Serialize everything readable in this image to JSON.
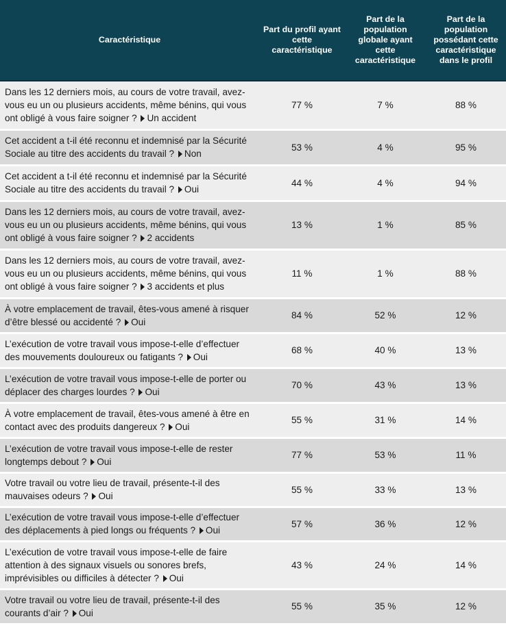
{
  "headers": [
    "Caractéristique",
    "Part du profil ayant cette caractéristique",
    "Part de la population globale ayant cette caractéristique",
    "Part de la population possédant cette caractéristique dans le profil"
  ],
  "rows": [
    {
      "question": "Dans les 12 derniers mois, au cours de votre travail, avez-vous eu un ou plusieurs accidents, même bénins, qui vous ont obligé à vous faire soigner ?",
      "answer": "Un accident",
      "profil": "77 %",
      "globale": "7 %",
      "dans_profil": "88 %",
      "h": 71
    },
    {
      "question": "Cet accident a t-il été reconnu et indemnisé par la Sécurité Sociale au titre des accidents du travail ?",
      "answer": "Non",
      "profil": "53 %",
      "globale": "4 %",
      "dans_profil": "95 %",
      "h": 52
    },
    {
      "question": "Cet accident a t-il été reconnu et indemnisé par la Sécurité Sociale au titre des accidents du travail ?",
      "answer": "Oui",
      "profil": "44 %",
      "globale": "4 %",
      "dans_profil": "94 %",
      "h": 52
    },
    {
      "question": "Dans les 12 derniers mois, au cours de votre travail, avez-vous eu un ou plusieurs accidents, même bénins, qui vous ont obligé à vous faire soigner ?",
      "answer": "2 accidents",
      "profil": "13 %",
      "globale": "1 %",
      "dans_profil": "85 %",
      "h": 71
    },
    {
      "question": "Dans les 12 derniers mois, au cours de votre travail, avez-vous eu un ou plusieurs accidents, même bénins, qui vous ont obligé à vous faire soigner ?",
      "answer": "3 accidents et plus",
      "profil": "11 %",
      "globale": "1 %",
      "dans_profil": "88 %",
      "h": 71
    },
    {
      "question": "À votre emplacement de travail, êtes-vous amené à risquer d’être blessé ou accidenté ?",
      "answer": "Oui",
      "profil": "84 %",
      "globale": "52 %",
      "dans_profil": "12 %",
      "h": 51
    },
    {
      "question": "L’exécution de votre travail vous impose-t-elle d’effectuer des mouvements douloureux ou fatigants ?",
      "answer": "Oui",
      "profil": "68 %",
      "globale": "40 %",
      "dans_profil": "13 %",
      "h": 51
    },
    {
      "question": "L’exécution de votre travail vous impose-t-elle de porter ou déplacer des charges lourdes ?",
      "answer": "Oui",
      "profil": "70 %",
      "globale": "43 %",
      "dans_profil": "13 %",
      "h": 51
    },
    {
      "question": "À votre emplacement de travail, êtes-vous amené à être en contact avec des produits dangereux ?",
      "answer": "Oui",
      "profil": "55 %",
      "globale": "31 %",
      "dans_profil": "14 %",
      "h": 51
    },
    {
      "question": "L’exécution de votre travail vous impose-t-elle de rester longtemps debout ?",
      "answer": "Oui",
      "profil": "77 %",
      "globale": "53 %",
      "dans_profil": "11 %",
      "h": 51
    },
    {
      "question": "Votre travail ou votre lieu de travail, présente-t-il des mauvaises odeurs ?",
      "answer": "Oui",
      "profil": "55 %",
      "globale": "33 %",
      "dans_profil": "13 %",
      "h": 50
    },
    {
      "question": "L’exécution de votre travail vous impose-t-elle d’effectuer des déplacements à pied longs ou fréquents ?",
      "answer": "Oui",
      "profil": "57 %",
      "globale": "36 %",
      "dans_profil": "12 %",
      "h": 50
    },
    {
      "question": "L’exécution de votre travail vous impose-t-elle de faire attention à des signaux visuels ou sonores brefs, imprévisibles ou difficiles à détecter ?",
      "answer": "Oui",
      "profil": "43 %",
      "globale": "24 %",
      "dans_profil": "14 %",
      "h": 70
    },
    {
      "question": "Votre travail ou votre lieu de travail, présente-t-il des courants d’air ?",
      "answer": "Oui",
      "profil": "55 %",
      "globale": "35 %",
      "dans_profil": "12 %",
      "h": 51
    }
  ]
}
